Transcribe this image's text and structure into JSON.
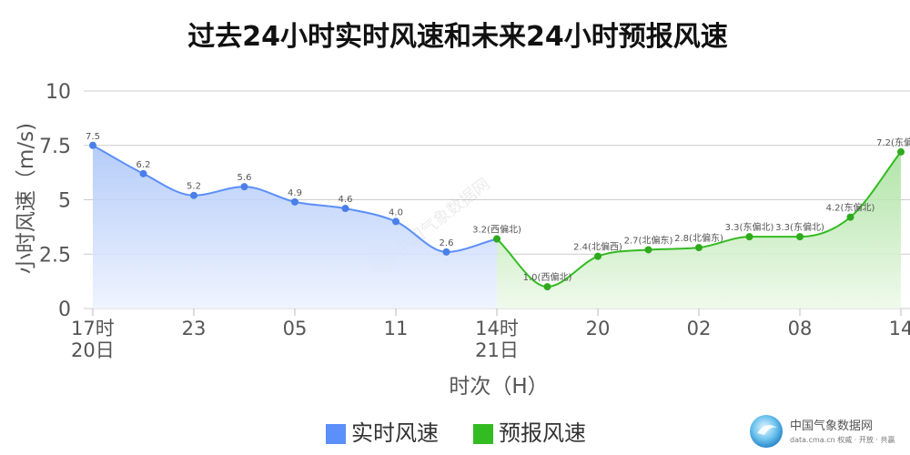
{
  "chart_data": {
    "type": "area",
    "title": "过去24小时实时风速和未来24小时预报风速",
    "ylabel": "小时风速（m/s)",
    "xlabel": "时次（H）",
    "ylim": [
      0,
      10
    ],
    "yticks": [
      "0",
      "2.5",
      "5",
      "7.5",
      "10"
    ],
    "grid": true,
    "legend_position": "bottom-center",
    "x_tick_labels": [
      {
        "index": 0,
        "lines": [
          "17时",
          "20日"
        ]
      },
      {
        "index": 2,
        "lines": [
          "23"
        ]
      },
      {
        "index": 4,
        "lines": [
          "05"
        ]
      },
      {
        "index": 6,
        "lines": [
          "11"
        ]
      },
      {
        "index": 8,
        "lines": [
          "14时",
          "21日"
        ]
      },
      {
        "index": 10,
        "lines": [
          "20"
        ]
      },
      {
        "index": 12,
        "lines": [
          "02"
        ]
      },
      {
        "index": 14,
        "lines": [
          "08"
        ]
      },
      {
        "index": 16,
        "lines": [
          "14"
        ]
      }
    ],
    "series": [
      {
        "name": "实时风速",
        "color": "#5b8ff9",
        "x_index": [
          0,
          1,
          2,
          3,
          4,
          5,
          6,
          7,
          8
        ],
        "values": [
          7.5,
          6.2,
          5.2,
          5.6,
          4.9,
          4.6,
          4.0,
          2.6,
          3.2
        ],
        "labels": [
          "7.5",
          "6.2",
          "5.2",
          "5.6",
          "4.9",
          "4.6",
          "4.0",
          "2.6",
          "3.2(西偏北)"
        ]
      },
      {
        "name": "预报风速",
        "color": "#33bb22",
        "x_index": [
          8,
          9,
          10,
          11,
          12,
          13,
          14,
          15,
          16
        ],
        "values": [
          3.2,
          1.0,
          2.4,
          2.7,
          2.8,
          3.3,
          3.3,
          4.2,
          7.2
        ],
        "labels": [
          "3.2(西偏北)",
          "1.0(西偏北)",
          "2.4(北偏西)",
          "2.7(北偏东)",
          "2.8(北偏东)",
          "3.3(东偏北)",
          "3.3(东偏北)",
          "4.2(东偏北)",
          "7.2(东偏北)"
        ]
      }
    ]
  },
  "branding": {
    "name": "中国气象数据网",
    "subtitle": "data.cma.cn 权威 · 开放 · 共赢",
    "watermark": "中国气象数据网"
  }
}
